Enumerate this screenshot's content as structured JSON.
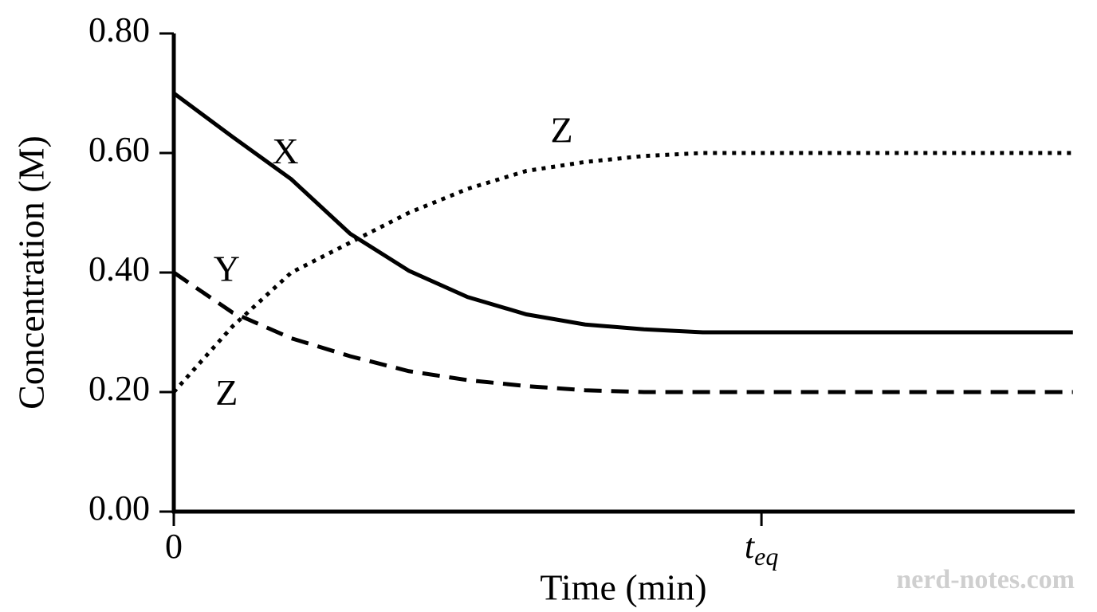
{
  "chart_data": {
    "type": "line",
    "x_label": "Time (min)",
    "y_label": "Concentration (M)",
    "x": [
      0,
      1,
      2,
      3,
      4,
      5,
      6,
      7,
      8,
      9,
      10,
      11,
      12,
      13,
      14,
      15,
      15.3
    ],
    "series": [
      {
        "name": "X",
        "color": "#000000",
        "dash": "solid",
        "values": [
          0.7,
          0.627,
          0.556,
          0.465,
          0.403,
          0.359,
          0.33,
          0.313,
          0.305,
          0.3,
          0.3,
          0.3,
          0.3,
          0.3,
          0.3,
          0.3,
          0.3
        ]
      },
      {
        "name": "Y",
        "color": "#000000",
        "dash": "dashed",
        "values": [
          0.4,
          0.333,
          0.29,
          0.26,
          0.235,
          0.22,
          0.21,
          0.203,
          0.2,
          0.2,
          0.2,
          0.2,
          0.2,
          0.2,
          0.2,
          0.2,
          0.2
        ]
      },
      {
        "name": "Z",
        "color": "#000000",
        "dash": "dotted",
        "values": [
          0.2,
          0.31,
          0.4,
          0.45,
          0.5,
          0.54,
          0.57,
          0.585,
          0.595,
          0.6,
          0.6,
          0.6,
          0.6,
          0.6,
          0.6,
          0.6,
          0.6
        ]
      }
    ],
    "annotations": [
      {
        "text": "X",
        "x": 1.9,
        "y": 0.597
      },
      {
        "text": "Y",
        "x": 0.9,
        "y": 0.4
      },
      {
        "text": "Z",
        "x": 6.6,
        "y": 0.632
      },
      {
        "text": "Z",
        "x": 0.9,
        "y": 0.193
      }
    ],
    "xlim": [
      0,
      15.33
    ],
    "ylim": [
      0,
      0.8
    ],
    "xticks": [
      0,
      {
        "value": 10,
        "label": "teq"
      }
    ],
    "yticks": [
      {
        "value": 0,
        "label": "0.00"
      },
      {
        "value": 0.2,
        "label": "0.20"
      },
      {
        "value": 0.4,
        "label": "0.40"
      },
      {
        "value": 0.6,
        "label": "0.60"
      },
      {
        "value": 0.8,
        "label": "0.80"
      }
    ],
    "grid": false,
    "watermark": "nerd-notes.com"
  }
}
